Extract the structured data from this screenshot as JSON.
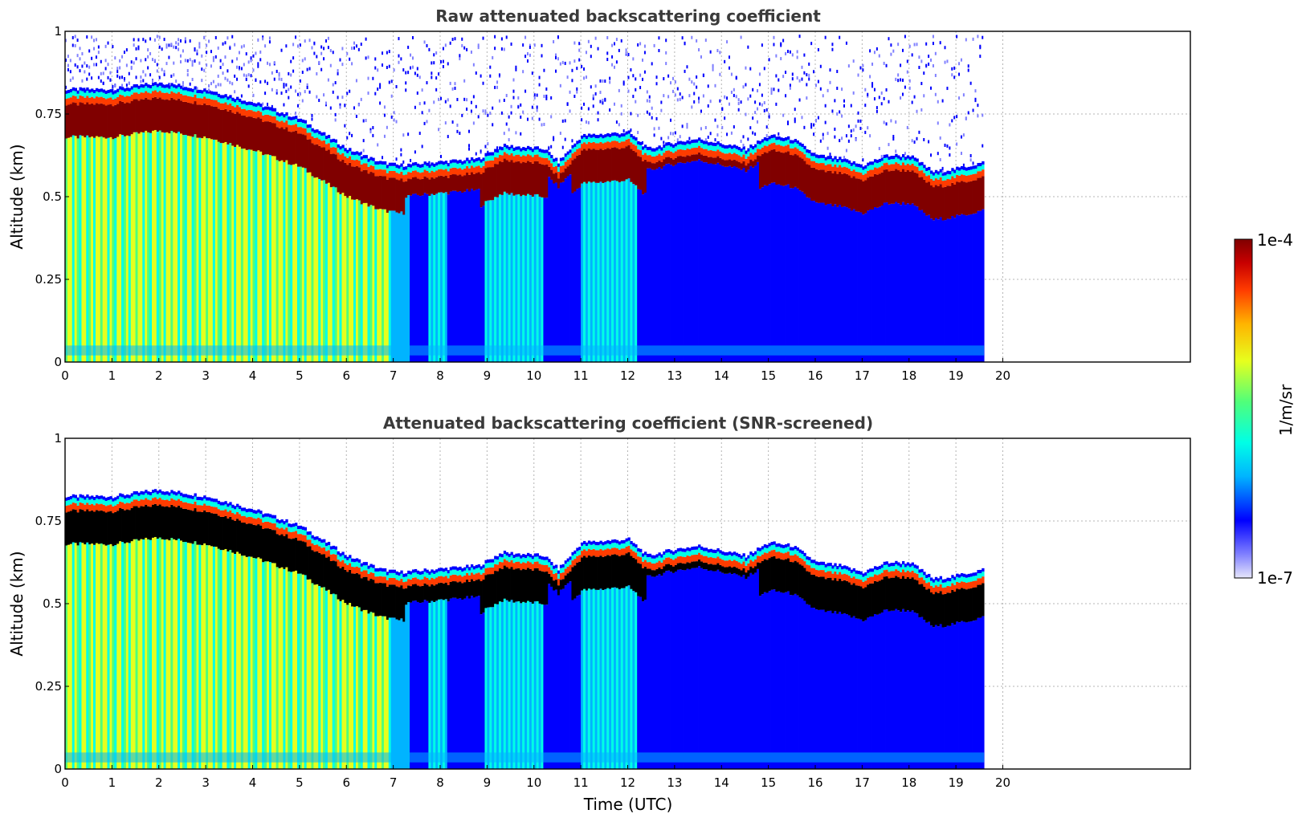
{
  "chart_data": [
    {
      "type": "heatmap",
      "title": "Raw attenuated backscattering coefficient",
      "xlabel": "",
      "ylabel": "Altitude (km)",
      "xlim": [
        0,
        24
      ],
      "ylim": [
        0,
        1
      ],
      "xticks": [
        "0",
        "1",
        "2",
        "3",
        "4",
        "5",
        "6",
        "7",
        "8",
        "9",
        "10",
        "11",
        "12",
        "13",
        "14",
        "15",
        "16",
        "17",
        "18",
        "19",
        "20"
      ],
      "yticks": [
        "0",
        "0.25",
        "0.5",
        "0.75",
        "1"
      ],
      "grid": true,
      "data_extent_hours": [
        0,
        19.6
      ],
      "cloud_top_km": [
        [
          0,
          0.78
        ],
        [
          1,
          0.78
        ],
        [
          2,
          0.8
        ],
        [
          3,
          0.78
        ],
        [
          4,
          0.74
        ],
        [
          5,
          0.69
        ],
        [
          6,
          0.6
        ],
        [
          6.7,
          0.56
        ],
        [
          7.1,
          0.55
        ],
        [
          8.8,
          0.57
        ],
        [
          9.3,
          0.61
        ],
        [
          10.2,
          0.6
        ],
        [
          10.5,
          0.56
        ],
        [
          11,
          0.64
        ],
        [
          12,
          0.65
        ],
        [
          12.4,
          0.6
        ],
        [
          13,
          0.62
        ],
        [
          13.5,
          0.63
        ],
        [
          14.5,
          0.6
        ],
        [
          15,
          0.64
        ],
        [
          15.5,
          0.63
        ],
        [
          16,
          0.58
        ],
        [
          16.5,
          0.57
        ],
        [
          17,
          0.55
        ],
        [
          17.5,
          0.58
        ],
        [
          18,
          0.58
        ],
        [
          18.5,
          0.53
        ],
        [
          19,
          0.54
        ],
        [
          19.6,
          0.56
        ]
      ],
      "colorbar": {
        "min_label": "1e-7",
        "max_label": "1e-4",
        "label": "1/m/sr",
        "colormap": [
          "#e6e6fa",
          "#8080ff",
          "#0000ff",
          "#00b4ff",
          "#00ffe6",
          "#50ff7a",
          "#e6ff1e",
          "#ffb400",
          "#ff3c00",
          "#c80000",
          "#800000"
        ]
      }
    },
    {
      "type": "heatmap",
      "title": "Attenuated backscattering coefficient (SNR-screened)",
      "xlabel": "Time (UTC)",
      "ylabel": "Altitude (km)",
      "xlim": [
        0,
        24
      ],
      "ylim": [
        0,
        1
      ],
      "xticks": [
        "0",
        "1",
        "2",
        "3",
        "4",
        "5",
        "6",
        "7",
        "8",
        "9",
        "10",
        "11",
        "12",
        "13",
        "14",
        "15",
        "16",
        "17",
        "18",
        "19",
        "20"
      ],
      "yticks": [
        "0",
        "0.25",
        "0.5",
        "0.75",
        "1"
      ],
      "grid": true,
      "data_extent_hours": [
        0,
        19.6
      ],
      "saturated_color": "#000000"
    }
  ]
}
